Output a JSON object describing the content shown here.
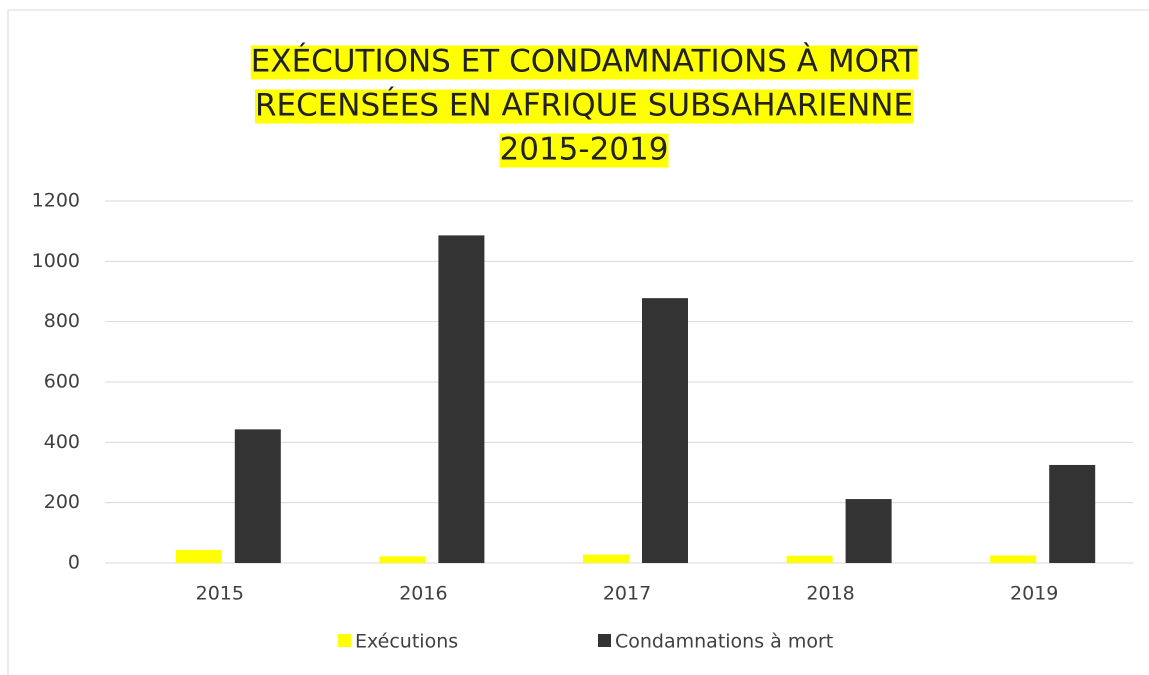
{
  "chart_data": {
    "type": "bar",
    "title": [
      "EXÉCUTIONS ET CONDAMNATIONS À MORT",
      "RECENSÉES EN AFRIQUE SUBSAHARIENNE",
      "2015-2019"
    ],
    "title_highlight": "#ffff00",
    "categories": [
      "2015",
      "2016",
      "2017",
      "2018",
      "2019"
    ],
    "series": [
      {
        "name": "Exécutions",
        "color": "#ffff00",
        "values": [
          43,
          22,
          28,
          24,
          25
        ]
      },
      {
        "name": "Condamnations à mort",
        "color": "#333333",
        "values": [
          443,
          1086,
          878,
          212,
          325
        ]
      }
    ],
    "ylim": [
      0,
      1200
    ],
    "yticks": [
      0,
      200,
      400,
      600,
      800,
      1000,
      1200
    ],
    "grid": true,
    "legend": "bottom"
  }
}
